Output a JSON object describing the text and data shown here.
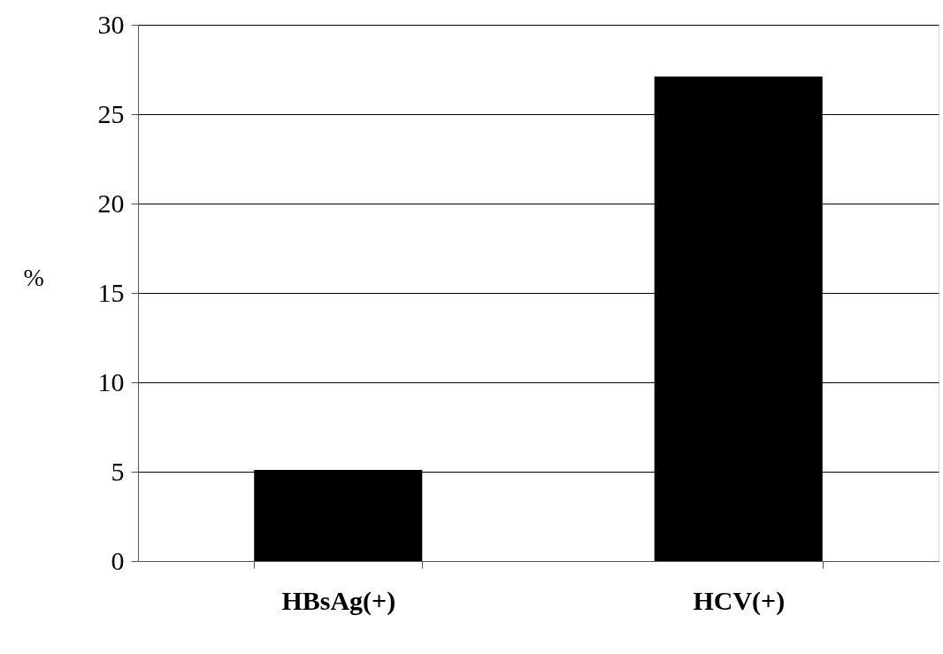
{
  "chart_data": {
    "type": "bar",
    "ylabel": "%",
    "categories": [
      "HBsAg(+)",
      "HCV(+)"
    ],
    "values": [
      5.1,
      27.1
    ],
    "color": "#000000",
    "ylim": [
      0,
      30
    ],
    "yticks": [
      0,
      5,
      10,
      15,
      20,
      25,
      30
    ],
    "grid": "y"
  }
}
